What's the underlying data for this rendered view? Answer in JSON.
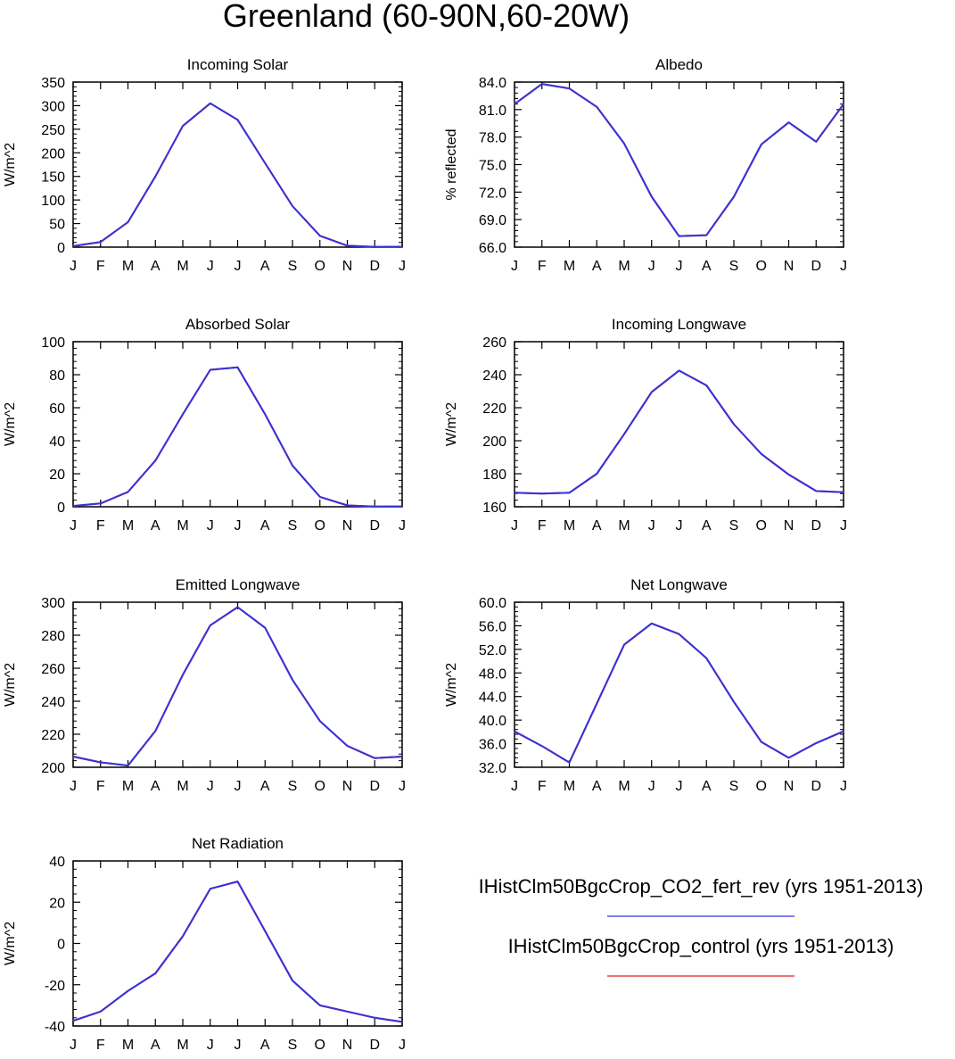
{
  "title": "Greenland (60-90N,60-20W)",
  "months": [
    "J",
    "F",
    "M",
    "A",
    "M",
    "J",
    "J",
    "A",
    "S",
    "O",
    "N",
    "D",
    "J"
  ],
  "legend": [
    {
      "label": "IHistClm50BgcCrop_CO2_fert_rev (yrs 1951-2013)",
      "color": "#3333dd"
    },
    {
      "label": "IHistClm50BgcCrop_control (yrs 1951-2013)",
      "color": "#dd2222"
    }
  ],
  "chart_data": [
    {
      "type": "line",
      "title": "Incoming Solar",
      "ylabel": "W/m^2",
      "ylim": [
        0,
        350
      ],
      "yticks": [
        "0",
        "50",
        "100",
        "150",
        "200",
        "250",
        "300",
        "350"
      ],
      "categories": [
        "J",
        "F",
        "M",
        "A",
        "M",
        "J",
        "J",
        "A",
        "S",
        "O",
        "N",
        "D",
        "J"
      ],
      "series": [
        {
          "values": [
            2,
            11,
            53,
            150,
            257,
            305,
            270,
            178,
            87,
            24,
            3,
            0.5,
            1
          ],
          "color": "#dd2222"
        },
        {
          "values": [
            2,
            11,
            53,
            150,
            257,
            305,
            270,
            178,
            87,
            24,
            3,
            0.5,
            1
          ],
          "color": "#3333dd"
        }
      ]
    },
    {
      "type": "line",
      "title": "Albedo",
      "ylabel": "% reflected",
      "ylim": [
        66,
        84
      ],
      "yticks": [
        "66.0",
        "69.0",
        "72.0",
        "75.0",
        "78.0",
        "81.0",
        "84.0"
      ],
      "categories": [
        "J",
        "F",
        "M",
        "A",
        "M",
        "J",
        "J",
        "A",
        "S",
        "O",
        "N",
        "D",
        "J"
      ],
      "series": [
        {
          "values": [
            81.6,
            83.8,
            83.3,
            81.3,
            77.3,
            71.5,
            67.2,
            67.3,
            71.5,
            77.2,
            79.6,
            77.5,
            81.6
          ],
          "color": "#dd2222"
        },
        {
          "values": [
            81.6,
            83.8,
            83.3,
            81.3,
            77.3,
            71.5,
            67.2,
            67.3,
            71.5,
            77.2,
            79.6,
            77.5,
            81.6
          ],
          "color": "#3333dd"
        }
      ]
    },
    {
      "type": "line",
      "title": "Absorbed Solar",
      "ylabel": "W/m^2",
      "ylim": [
        0,
        100
      ],
      "yticks": [
        "0",
        "20",
        "40",
        "60",
        "80",
        "100"
      ],
      "categories": [
        "J",
        "F",
        "M",
        "A",
        "M",
        "J",
        "J",
        "A",
        "S",
        "O",
        "N",
        "D",
        "J"
      ],
      "series": [
        {
          "values": [
            0.5,
            2,
            9,
            28,
            56,
            83,
            84.5,
            56,
            25,
            6,
            0.8,
            0.1,
            0.2
          ],
          "color": "#dd2222"
        },
        {
          "values": [
            0.5,
            2,
            9,
            28,
            56,
            83,
            84.5,
            56,
            25,
            6,
            0.8,
            0.1,
            0.2
          ],
          "color": "#3333dd"
        }
      ]
    },
    {
      "type": "line",
      "title": "Incoming Longwave",
      "ylabel": "W/m^2",
      "ylim": [
        160,
        260
      ],
      "yticks": [
        "160",
        "180",
        "200",
        "220",
        "240",
        "260"
      ],
      "categories": [
        "J",
        "F",
        "M",
        "A",
        "M",
        "J",
        "J",
        "A",
        "S",
        "O",
        "N",
        "D",
        "J"
      ],
      "series": [
        {
          "values": [
            168.5,
            168,
            168.5,
            180,
            204,
            229.5,
            242.5,
            233.5,
            210,
            192,
            179.5,
            169.5,
            168.8
          ],
          "color": "#dd2222"
        },
        {
          "values": [
            168.5,
            168,
            168.5,
            180,
            204,
            229.5,
            242.5,
            233.5,
            210,
            192,
            179.5,
            169.5,
            168.8
          ],
          "color": "#3333dd"
        }
      ]
    },
    {
      "type": "line",
      "title": "Emitted Longwave",
      "ylabel": "W/m^2",
      "ylim": [
        200,
        300
      ],
      "yticks": [
        "200",
        "220",
        "240",
        "260",
        "280",
        "300"
      ],
      "categories": [
        "J",
        "F",
        "M",
        "A",
        "M",
        "J",
        "J",
        "A",
        "S",
        "O",
        "N",
        "D",
        "J"
      ],
      "series": [
        {
          "values": [
            206.5,
            203,
            201,
            222,
            256,
            286,
            297,
            284.5,
            253,
            228,
            213,
            205.5,
            206.5
          ],
          "color": "#dd2222"
        },
        {
          "values": [
            206.5,
            203,
            201,
            222,
            256,
            286,
            297,
            284.5,
            253,
            228,
            213,
            205.5,
            206.5
          ],
          "color": "#3333dd"
        }
      ]
    },
    {
      "type": "line",
      "title": "Net Longwave",
      "ylabel": "W/m^2",
      "ylim": [
        32,
        60
      ],
      "yticks": [
        "32.0",
        "36.0",
        "40.0",
        "44.0",
        "48.0",
        "52.0",
        "56.0",
        "60.0"
      ],
      "categories": [
        "J",
        "F",
        "M",
        "A",
        "M",
        "J",
        "J",
        "A",
        "S",
        "O",
        "N",
        "D",
        "J"
      ],
      "series": [
        {
          "values": [
            38.1,
            35.6,
            32.8,
            42.8,
            52.8,
            56.4,
            54.6,
            50.5,
            43.1,
            36.3,
            33.6,
            36.1,
            38.1
          ],
          "color": "#dd2222"
        },
        {
          "values": [
            38.1,
            35.6,
            32.8,
            42.8,
            52.8,
            56.4,
            54.6,
            50.5,
            43.1,
            36.3,
            33.6,
            36.1,
            38.1
          ],
          "color": "#3333dd"
        }
      ]
    },
    {
      "type": "line",
      "title": "Net Radiation",
      "ylabel": "W/m^2",
      "ylim": [
        -40,
        40
      ],
      "yticks": [
        "-40",
        "-20",
        "0",
        "20",
        "40"
      ],
      "categories": [
        "J",
        "F",
        "M",
        "A",
        "M",
        "J",
        "J",
        "A",
        "S",
        "O",
        "N",
        "D",
        "J"
      ],
      "series": [
        {
          "values": [
            -37.5,
            -33,
            -23,
            -14.5,
            3.5,
            26.5,
            30,
            6,
            -18,
            -30,
            -33,
            -36,
            -38
          ],
          "color": "#dd2222"
        },
        {
          "values": [
            -37.5,
            -33,
            -23,
            -14.5,
            3.5,
            26.5,
            30,
            6,
            -18,
            -30,
            -33,
            -36,
            -38
          ],
          "color": "#3333dd"
        }
      ]
    }
  ]
}
